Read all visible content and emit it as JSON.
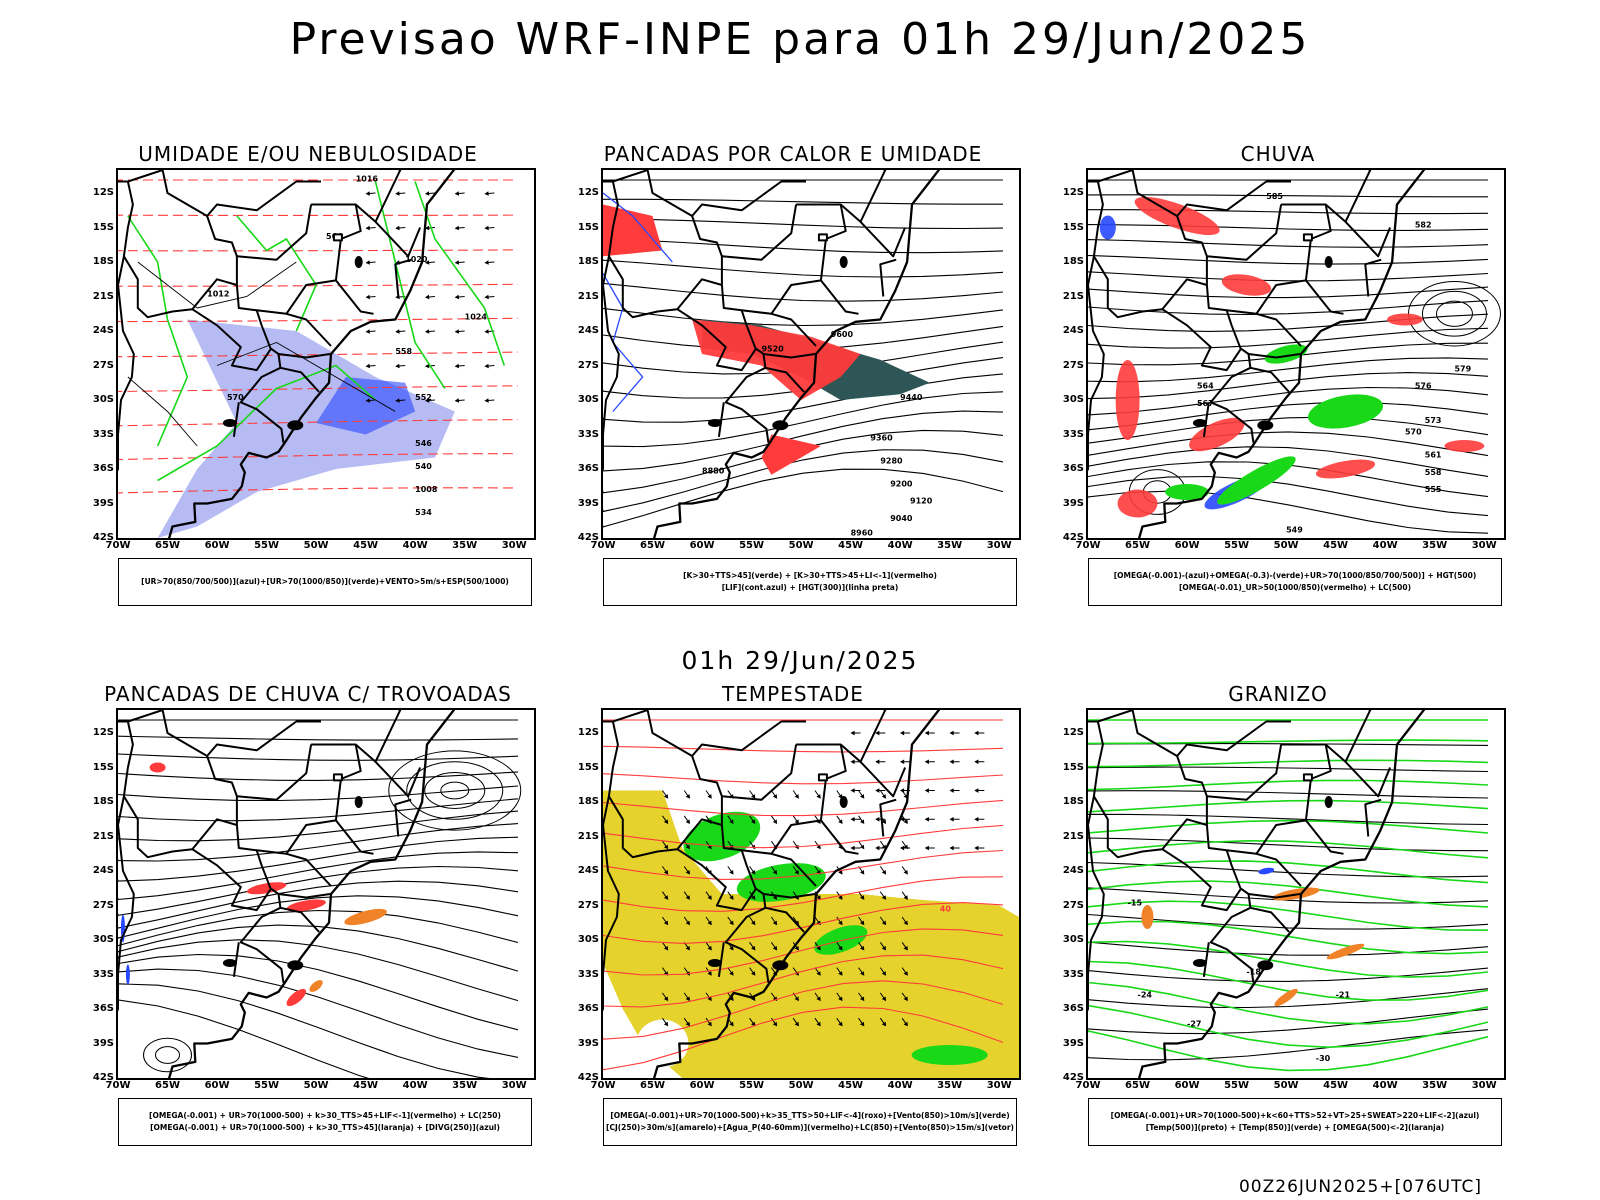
{
  "title": "Previsao WRF-INPE  para 01h 29/Jun/2025",
  "mid_title": "01h 29/Jun/2025",
  "footer": "00Z26JUN2025+[076UTC]",
  "axes": {
    "lat_labels": [
      "12S",
      "15S",
      "18S",
      "21S",
      "24S",
      "27S",
      "30S",
      "33S",
      "36S",
      "39S",
      "42S"
    ],
    "lon_labels": [
      "70W",
      "65W",
      "60W",
      "55W",
      "50W",
      "45W",
      "40W",
      "35W",
      "30W"
    ]
  },
  "panels": [
    {
      "title": "UMIDADE E/OU NEBULOSIDADE",
      "legend": [
        "[UR>70(850/700/500)](azul)+[UR>70(1000/850)](verde)+VENTO>5m/s+ESP(500/1000)"
      ],
      "contour_labels": [
        "1016",
        "1020",
        "1012",
        "1024",
        "1008",
        "570",
        "564",
        "558",
        "552",
        "546",
        "540",
        "534"
      ]
    },
    {
      "title": "PANCADAS POR CALOR E UMIDADE",
      "legend": [
        "[K>30+TTS>45](verde) + [K>30+TTS>45+LI<-1](vermelho)",
        "[LIF](cont.azul) + [HGT(300)](linha preta)"
      ],
      "contour_labels": [
        "9600",
        "9520",
        "9440",
        "9360",
        "9280",
        "9200",
        "9120",
        "9040",
        "8960",
        "8880"
      ]
    },
    {
      "title": "CHUVA",
      "legend": [
        "[OMEGA(-0.001)-(azul)+OMEGA(-0.3)-(verde)+UR>70(1000/850/700/500)] + HGT(500)",
        "[OMEGA(-0.01)_UR>50(1000/850)(vermelho) + LC(500)"
      ],
      "contour_labels": [
        "585",
        "582",
        "579",
        "576",
        "573",
        "570",
        "567",
        "564",
        "561",
        "558",
        "555",
        "549"
      ]
    },
    {
      "title": "PANCADAS DE CHUVA C/ TROVOADAS",
      "legend": [
        "[OMEGA(-0.001) + UR>70(1000-500) + k>30_TTS>45+LIF<-1](vermelho) + LC(250)",
        "[OMEGA(-0.001) + UR>70(1000-500) + k>30_TTS>45](laranja) + [DIVG(250)](azul)"
      ],
      "contour_labels": []
    },
    {
      "title": "TEMPESTADE",
      "legend": [
        "[OMEGA(-0.001)+UR>70(1000-500)+k>35_TTS>50+LIF<-4](roxo)+[Vento(850)>10m/s](verde)",
        "[CJ(250)>30m/s](amarelo)+[Agua_P(40-60mm)](vermelho)+LC(850)+[Vento(850)>15m/s](vetor)"
      ],
      "contour_labels": [
        "40"
      ]
    },
    {
      "title": "GRANIZO",
      "legend": [
        "[OMEGA(-0.001)+UR>70(1000-500)+k<60+TTS>52+VT>25+SWEAT>220+LIF<-2](azul)",
        "[Temp(500)](preto) + [Temp(850)](verde) + [OMEGA(500)<-2](laranja)"
      ],
      "contour_labels": [
        "-15",
        "-18",
        "-21",
        "-24",
        "-27",
        "-30"
      ]
    }
  ],
  "colors": {
    "contour": "#000000",
    "red": "#ff3b3b",
    "green": "#18d818",
    "blue": "#2848ff",
    "lavender": "#9da4f0",
    "yellow": "#e6d22c",
    "orange": "#f08228",
    "teal": "#2e5656"
  }
}
